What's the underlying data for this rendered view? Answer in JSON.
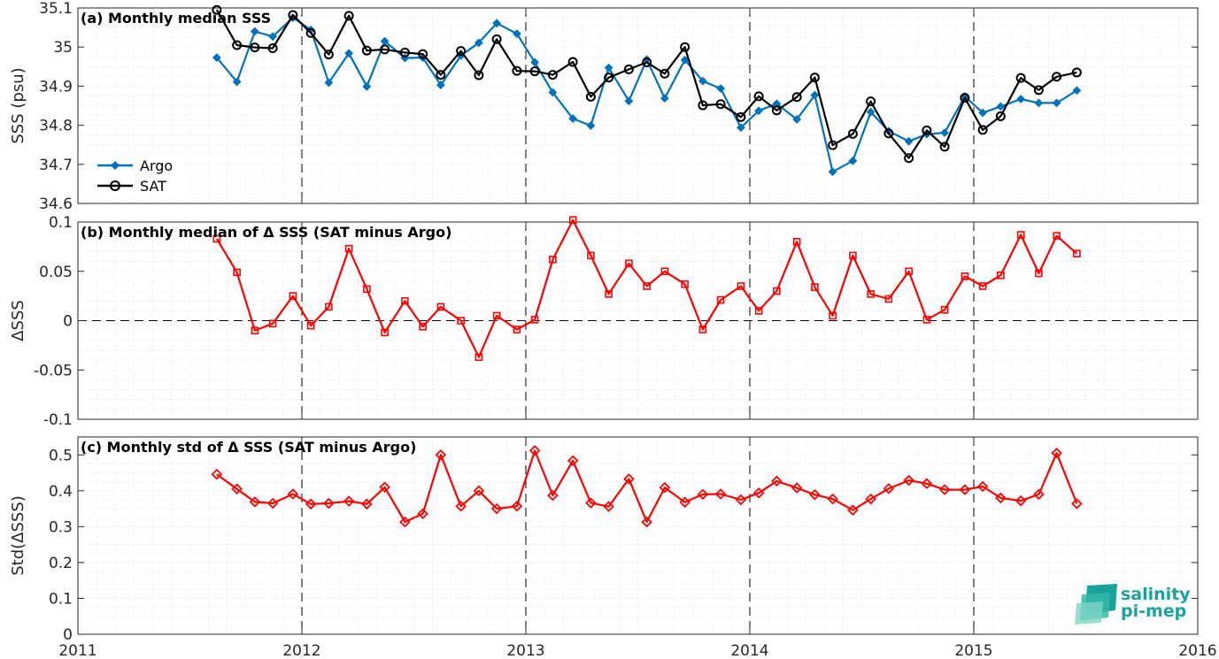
{
  "chart_data": [
    {
      "type": "line",
      "title": "(a) Monthly median SSS",
      "xlabel": "",
      "ylabel": "SSS (psu)",
      "xlim": [
        2011,
        2016
      ],
      "ylim": [
        34.6,
        35.1
      ],
      "xticks": [
        "2011",
        "2012",
        "2013",
        "2014",
        "2015",
        "2016"
      ],
      "yticks": [
        "34.6",
        "34.7",
        "34.8",
        "34.9",
        "35",
        "35.1"
      ],
      "grid": true,
      "legend_position": "bottom-left",
      "x": [
        2011.62,
        2011.71,
        2011.79,
        2011.87,
        2011.96,
        2012.04,
        2012.12,
        2012.21,
        2012.29,
        2012.37,
        2012.46,
        2012.54,
        2012.62,
        2012.71,
        2012.79,
        2012.87,
        2012.96,
        2013.04,
        2013.12,
        2013.21,
        2013.29,
        2013.37,
        2013.46,
        2013.54,
        2013.62,
        2013.71,
        2013.79,
        2013.87,
        2013.96,
        2014.04,
        2014.12,
        2014.21,
        2014.29,
        2014.37,
        2014.46,
        2014.54,
        2014.62,
        2014.71,
        2014.79,
        2014.87,
        2014.96,
        2015.04,
        2015.12,
        2015.21,
        2015.29,
        2015.37,
        2015.46
      ],
      "series": [
        {
          "name": "Argo",
          "color": "#0072bd",
          "marker": "diamond",
          "values": [
            34.973,
            34.911,
            35.04,
            35.027,
            35.075,
            35.044,
            34.909,
            34.984,
            34.899,
            35.015,
            34.972,
            34.973,
            34.903,
            34.978,
            35.011,
            35.061,
            35.034,
            34.961,
            34.884,
            34.817,
            34.799,
            34.947,
            34.862,
            34.968,
            34.869,
            34.967,
            34.913,
            34.894,
            34.794,
            34.837,
            34.855,
            34.815,
            34.877,
            34.681,
            34.709,
            34.834,
            34.785,
            34.759,
            34.777,
            34.781,
            34.874,
            34.832,
            34.848,
            34.867,
            34.857,
            34.857,
            34.889
          ]
        },
        {
          "name": "SAT",
          "color": "#000000",
          "marker": "circle",
          "values": [
            35.095,
            35.005,
            34.999,
            34.997,
            35.082,
            35.036,
            34.981,
            35.08,
            34.991,
            34.994,
            34.986,
            34.982,
            34.929,
            34.99,
            34.928,
            35.02,
            34.939,
            34.938,
            34.929,
            34.962,
            34.873,
            34.922,
            34.943,
            34.961,
            34.932,
            35.0,
            34.851,
            34.854,
            34.821,
            34.874,
            34.838,
            34.872,
            34.922,
            34.749,
            34.778,
            34.861,
            34.779,
            34.716,
            34.787,
            34.745,
            34.87,
            34.788,
            34.823,
            34.921,
            34.89,
            34.924,
            34.935
          ]
        }
      ]
    },
    {
      "type": "line",
      "title": "(b) Monthly median of Δ SSS (SAT minus Argo)",
      "xlabel": "",
      "ylabel": "ΔSSS",
      "xlim": [
        2011,
        2016
      ],
      "ylim": [
        -0.1,
        0.1
      ],
      "xticks": [],
      "yticks": [
        "-0.1",
        "-0.05",
        "0",
        "0.05",
        "0.1"
      ],
      "grid": true,
      "x": [
        2011.62,
        2011.71,
        2011.79,
        2011.87,
        2011.96,
        2012.04,
        2012.12,
        2012.21,
        2012.29,
        2012.37,
        2012.46,
        2012.54,
        2012.62,
        2012.71,
        2012.79,
        2012.87,
        2012.96,
        2013.04,
        2013.12,
        2013.21,
        2013.29,
        2013.37,
        2013.46,
        2013.54,
        2013.62,
        2013.71,
        2013.79,
        2013.87,
        2013.96,
        2014.04,
        2014.12,
        2014.21,
        2014.29,
        2014.37,
        2014.46,
        2014.54,
        2014.62,
        2014.71,
        2014.79,
        2014.87,
        2014.96,
        2015.04,
        2015.12,
        2015.21,
        2015.29,
        2015.37,
        2015.46
      ],
      "series": [
        {
          "name": "",
          "color": "#ff0000",
          "marker": "square",
          "values": [
            0.083,
            0.049,
            -0.01,
            -0.003,
            0.025,
            -0.005,
            0.014,
            0.073,
            0.032,
            -0.012,
            0.02,
            -0.006,
            0.014,
            0.0,
            -0.037,
            0.005,
            -0.009,
            0.001,
            0.062,
            0.102,
            0.066,
            0.027,
            0.058,
            0.035,
            0.05,
            0.037,
            -0.009,
            0.021,
            0.035,
            0.01,
            0.03,
            0.08,
            0.034,
            0.005,
            0.066,
            0.027,
            0.022,
            0.05,
            0.001,
            0.011,
            0.045,
            0.035,
            0.046,
            0.087,
            0.048,
            0.086,
            0.068
          ]
        }
      ]
    },
    {
      "type": "line",
      "title": "(c) Monthly std of Δ SSS (SAT minus Argo)",
      "xlabel": "",
      "ylabel": "Std(ΔSSS)",
      "xlim": [
        2011,
        2016
      ],
      "ylim": [
        0,
        0.55
      ],
      "xticks": [
        "2011",
        "2012",
        "2013",
        "2014",
        "2015",
        "2016"
      ],
      "yticks": [
        "0",
        "0.1",
        "0.2",
        "0.3",
        "0.4",
        "0.5"
      ],
      "grid": true,
      "x": [
        2011.62,
        2011.71,
        2011.79,
        2011.87,
        2011.96,
        2012.04,
        2012.12,
        2012.21,
        2012.29,
        2012.37,
        2012.46,
        2012.54,
        2012.62,
        2012.71,
        2012.79,
        2012.87,
        2012.96,
        2013.04,
        2013.12,
        2013.21,
        2013.29,
        2013.37,
        2013.46,
        2013.54,
        2013.62,
        2013.71,
        2013.79,
        2013.87,
        2013.96,
        2014.04,
        2014.12,
        2014.21,
        2014.29,
        2014.37,
        2014.46,
        2014.54,
        2014.62,
        2014.71,
        2014.79,
        2014.87,
        2014.96,
        2015.04,
        2015.12,
        2015.21,
        2015.29,
        2015.37,
        2015.46
      ],
      "series": [
        {
          "name": "",
          "color": "#ff0000",
          "marker": "diamond",
          "values": [
            0.446,
            0.405,
            0.369,
            0.365,
            0.391,
            0.363,
            0.365,
            0.371,
            0.363,
            0.41,
            0.313,
            0.336,
            0.5,
            0.357,
            0.4,
            0.35,
            0.357,
            0.512,
            0.387,
            0.484,
            0.366,
            0.356,
            0.433,
            0.313,
            0.409,
            0.368,
            0.39,
            0.391,
            0.375,
            0.394,
            0.427,
            0.408,
            0.389,
            0.377,
            0.346,
            0.377,
            0.406,
            0.429,
            0.42,
            0.403,
            0.403,
            0.412,
            0.38,
            0.372,
            0.39,
            0.505,
            0.364
          ]
        }
      ]
    }
  ],
  "logo": {
    "line1": "salinity",
    "line2": "pi-mep"
  }
}
